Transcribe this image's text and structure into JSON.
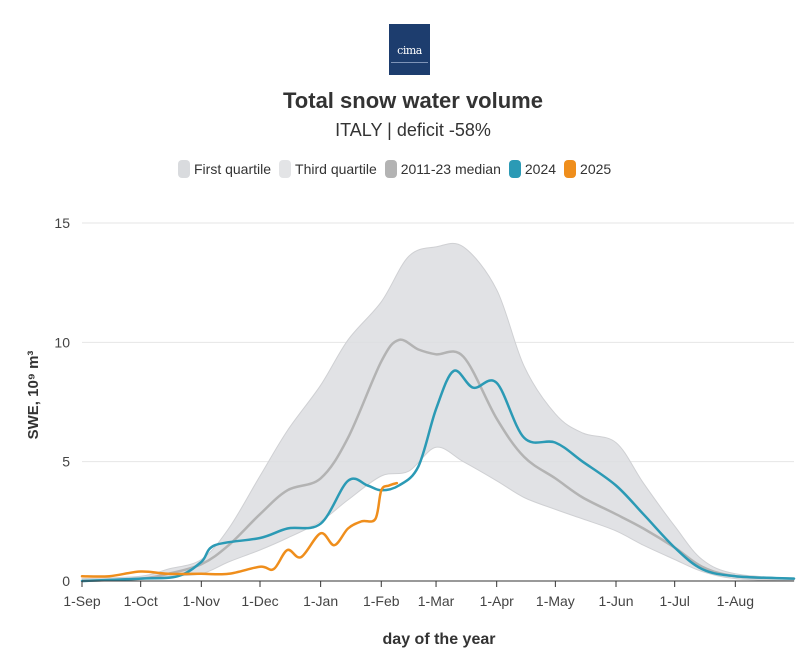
{
  "header": {
    "logo_text": "cima",
    "title": "Total snow water volume",
    "subtitle": "ITALY | deficit -58%"
  },
  "legend": [
    {
      "label": "First quartile",
      "color": "#d9dbde"
    },
    {
      "label": "Third quartile",
      "color": "#e3e4e6"
    },
    {
      "label": "2011-23 median",
      "color": "#b3b3b3"
    },
    {
      "label": "2024",
      "color": "#2b9ab5"
    },
    {
      "label": "2025",
      "color": "#ef8e1c"
    }
  ],
  "chart_data": {
    "type": "line",
    "title": "Total snow water volume",
    "subtitle": "ITALY | deficit -58%",
    "xlabel": "day of the year",
    "ylabel": "SWE, 10⁹ m³",
    "ylim": [
      0,
      15
    ],
    "yticks": [
      0,
      5,
      10,
      15
    ],
    "xlim": [
      "1-Sep",
      "31-Aug"
    ],
    "xticks": [
      "1-Sep",
      "1-Oct",
      "1-Nov",
      "1-Dec",
      "1-Jan",
      "1-Feb",
      "1-Mar",
      "1-Apr",
      "1-May",
      "1-Jun",
      "1-Jul",
      "1-Aug"
    ],
    "grid": true,
    "legend_position": "top",
    "band": {
      "name": "First quartile – Third quartile",
      "x": [
        "1-Sep",
        "1-Oct",
        "15-Oct",
        "1-Nov",
        "15-Nov",
        "1-Dec",
        "15-Dec",
        "1-Jan",
        "15-Jan",
        "1-Feb",
        "15-Feb",
        "1-Mar",
        "15-Mar",
        "1-Apr",
        "15-Apr",
        "1-May",
        "15-May",
        "1-Jun",
        "15-Jun",
        "1-Jul",
        "15-Jul",
        "1-Aug",
        "31-Aug"
      ],
      "low": [
        0.0,
        0.1,
        0.2,
        0.3,
        0.8,
        1.3,
        1.8,
        2.5,
        3.4,
        4.4,
        4.6,
        5.6,
        5.0,
        4.2,
        3.5,
        3.0,
        2.6,
        2.1,
        1.5,
        0.9,
        0.4,
        0.1,
        0.0
      ],
      "high": [
        0.1,
        0.2,
        0.5,
        0.9,
        2.2,
        4.4,
        6.3,
        8.2,
        10.1,
        11.7,
        13.6,
        14.0,
        14.0,
        12.2,
        9.0,
        7.0,
        6.2,
        5.8,
        4.1,
        2.3,
        0.9,
        0.3,
        0.1
      ]
    },
    "series": [
      {
        "name": "2011-23 median",
        "x": [
          "1-Sep",
          "1-Oct",
          "15-Oct",
          "1-Nov",
          "15-Nov",
          "1-Dec",
          "15-Dec",
          "1-Jan",
          "15-Jan",
          "1-Feb",
          "10-Feb",
          "20-Feb",
          "1-Mar",
          "15-Mar",
          "1-Apr",
          "15-Apr",
          "1-May",
          "15-May",
          "1-Jun",
          "15-Jun",
          "1-Jul",
          "15-Jul",
          "1-Aug",
          "31-Aug"
        ],
        "values": [
          0.0,
          0.1,
          0.3,
          0.7,
          1.5,
          2.8,
          3.8,
          4.3,
          6.0,
          9.2,
          10.1,
          9.7,
          9.5,
          9.4,
          6.8,
          5.2,
          4.3,
          3.5,
          2.8,
          2.2,
          1.4,
          0.6,
          0.2,
          0.1
        ]
      },
      {
        "name": "2024",
        "x": [
          "1-Sep",
          "1-Oct",
          "20-Oct",
          "1-Nov",
          "8-Nov",
          "1-Dec",
          "15-Dec",
          "1-Jan",
          "15-Jan",
          "25-Jan",
          "1-Feb",
          "10-Feb",
          "20-Feb",
          "1-Mar",
          "10-Mar",
          "20-Mar",
          "1-Apr",
          "15-Apr",
          "1-May",
          "15-May",
          "1-Jun",
          "15-Jun",
          "1-Jul",
          "15-Jul",
          "1-Aug",
          "31-Aug"
        ],
        "values": [
          0.0,
          0.1,
          0.2,
          0.8,
          1.5,
          1.8,
          2.2,
          2.4,
          4.2,
          4.0,
          3.8,
          4.0,
          4.8,
          7.2,
          8.8,
          8.1,
          8.3,
          6.0,
          5.8,
          5.0,
          4.0,
          2.8,
          1.4,
          0.5,
          0.2,
          0.1
        ]
      },
      {
        "name": "2025",
        "x": [
          "1-Sep",
          "15-Sep",
          "1-Oct",
          "15-Oct",
          "1-Nov",
          "15-Nov",
          "1-Dec",
          "8-Dec",
          "15-Dec",
          "22-Dec",
          "1-Jan",
          "8-Jan",
          "15-Jan",
          "22-Jan",
          "29-Jan",
          "1-Feb",
          "5-Feb",
          "9-Feb"
        ],
        "values": [
          0.2,
          0.2,
          0.4,
          0.3,
          0.3,
          0.3,
          0.6,
          0.5,
          1.3,
          1.0,
          2.0,
          1.5,
          2.2,
          2.5,
          2.6,
          3.8,
          4.0,
          4.1
        ]
      }
    ]
  }
}
